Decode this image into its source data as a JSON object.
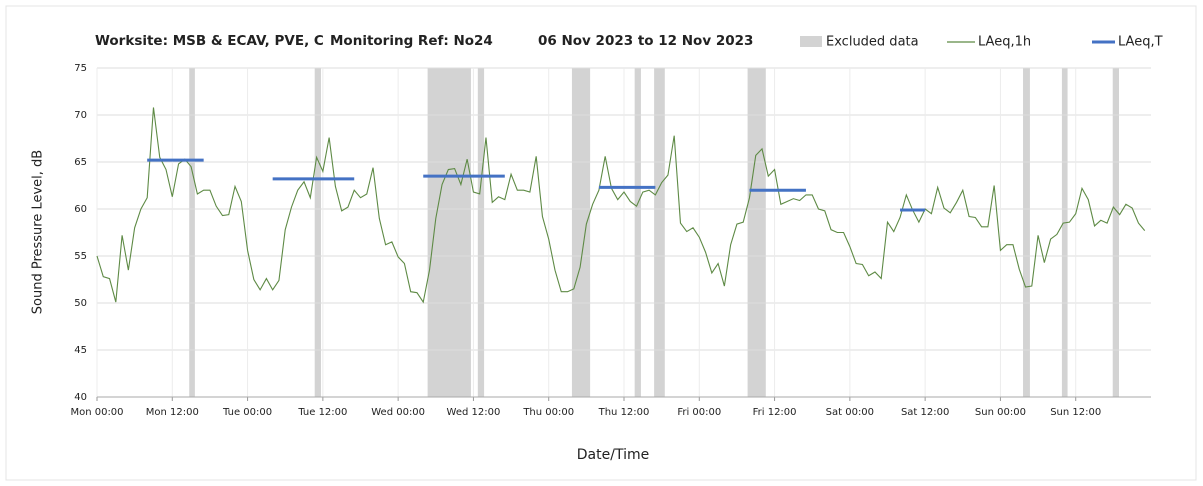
{
  "chart_data": {
    "type": "line",
    "title_parts": [
      "Worksite: MSB & ECAV, PVE, C",
      "Monitoring Ref: No24",
      "06 Nov 2023 to 12 Nov 2023"
    ],
    "x_label": "Date/Time",
    "y_label": "Sound Pressure Level, dB",
    "xlim": [
      0,
      168
    ],
    "xticks": [
      {
        "value": 0,
        "label": "Mon 00:00"
      },
      {
        "value": 12,
        "label": "Mon 12:00"
      },
      {
        "value": 24,
        "label": "Tue 00:00"
      },
      {
        "value": 36,
        "label": "Tue 12:00"
      },
      {
        "value": 48,
        "label": "Wed 00:00"
      },
      {
        "value": 60,
        "label": "Wed 12:00"
      },
      {
        "value": 72,
        "label": "Thu 00:00"
      },
      {
        "value": 84,
        "label": "Thu 12:00"
      },
      {
        "value": 96,
        "label": "Fri 00:00"
      },
      {
        "value": 108,
        "label": "Fri 12:00"
      },
      {
        "value": 120,
        "label": "Sat 00:00"
      },
      {
        "value": 132,
        "label": "Sat 12:00"
      },
      {
        "value": 144,
        "label": "Sun 00:00"
      },
      {
        "value": 156,
        "label": "Sun 12:00"
      }
    ],
    "ylim": [
      40,
      75
    ],
    "yticks": [
      40,
      45,
      50,
      55,
      60,
      65,
      70,
      75
    ],
    "grid": true,
    "x": [
      0,
      1,
      2,
      3,
      4,
      5,
      6,
      7,
      8,
      9,
      10,
      11,
      12,
      13,
      14,
      15,
      16,
      17,
      18,
      19,
      20,
      21,
      22,
      23,
      24,
      25,
      26,
      27,
      28,
      29,
      30,
      31,
      32,
      33,
      34,
      35,
      36,
      37,
      38,
      39,
      40,
      41,
      42,
      43,
      44,
      45,
      46,
      47,
      48,
      49,
      50,
      51,
      52,
      53,
      54,
      55,
      56,
      57,
      58,
      59,
      60,
      61,
      62,
      63,
      64,
      65,
      66,
      67,
      68,
      69,
      70,
      71,
      72,
      73,
      74,
      75,
      76,
      77,
      78,
      79,
      80,
      81,
      82,
      83,
      84,
      85,
      86,
      87,
      88,
      89,
      90,
      91,
      92,
      93,
      94,
      95,
      96,
      97,
      98,
      99,
      100,
      101,
      102,
      103,
      104,
      105,
      106,
      107,
      108,
      109,
      110,
      111,
      112,
      113,
      114,
      115,
      116,
      117,
      118,
      119,
      120,
      121,
      122,
      123,
      124,
      125,
      126,
      127,
      128,
      129,
      130,
      131,
      132,
      133,
      134,
      135,
      136,
      137,
      138,
      139,
      140,
      141,
      142,
      143,
      144,
      145,
      146,
      147,
      148,
      149,
      150,
      151,
      152,
      153,
      154,
      155,
      156,
      157,
      158,
      159,
      160,
      161,
      162,
      163,
      164,
      165,
      166,
      167
    ],
    "series": [
      {
        "name": "LAeq,1h",
        "color": "#5e8a45",
        "values": [
          55,
          52.8,
          52.6,
          50.1,
          57.2,
          53.5,
          58,
          60,
          61.2,
          70.8,
          65.5,
          64.2,
          61.3,
          64.8,
          65.3,
          64.5,
          61.6,
          62,
          62,
          60.3,
          59.3,
          59.4,
          62.4,
          60.8,
          55.6,
          52.5,
          51.4,
          52.6,
          51.4,
          52.4,
          57.8,
          60.2,
          62,
          62.9,
          61.2,
          65.5,
          64,
          67.6,
          62.4,
          59.8,
          60.2,
          62,
          61.2,
          61.6,
          64.4,
          59,
          56.2,
          56.5,
          54.9,
          54.2,
          51.2,
          51.1,
          50.1,
          53.5,
          59,
          62.6,
          64.2,
          64.3,
          62.6,
          65.3,
          61.8,
          61.6,
          67.6,
          60.7,
          61.3,
          61,
          63.7,
          62,
          62,
          61.8,
          65.6,
          59.2,
          56.8,
          53.5,
          51.2,
          51.2,
          51.5,
          53.8,
          58.4,
          60.5,
          62,
          65.6,
          62.2,
          61,
          61.8,
          60.8,
          60.3,
          61.8,
          62,
          61.5,
          62.8,
          63.6,
          67.8,
          58.5,
          57.6,
          58,
          57,
          55.4,
          53.2,
          54.2,
          51.8,
          56.2,
          58.4,
          58.6,
          61.2,
          65.7,
          66.4,
          63.5,
          64.2,
          60.5,
          60.8,
          61.1,
          60.9,
          61.5,
          61.5,
          60,
          59.8,
          57.8,
          57.5,
          57.5,
          56,
          54.2,
          54.1,
          52.9,
          53.3,
          52.6,
          58.6,
          57.6,
          59.1,
          61.5,
          59.9,
          58.6,
          60,
          59.5,
          62.3,
          60.1,
          59.6,
          60.7,
          62,
          59.2,
          59.1,
          58.1,
          58.1,
          62.5,
          55.6,
          56.2,
          56.2,
          53.6,
          51.7,
          51.8,
          57.2,
          54.3,
          56.8,
          57.3,
          58.5,
          58.6,
          59.5,
          62.2,
          61,
          58.2,
          58.8,
          58.5,
          60.2,
          59.4,
          60.5,
          60.1,
          58.5,
          57.7
        ]
      }
    ],
    "excluded": {
      "name": "Excluded data",
      "color": "#d3d3d3",
      "ranges": [
        [
          14.7,
          15.6
        ],
        [
          34.7,
          35.7
        ],
        [
          52.7,
          59.6
        ],
        [
          60.7,
          61.7
        ],
        [
          75.7,
          78.6
        ],
        [
          85.7,
          86.7
        ],
        [
          88.8,
          90.5
        ],
        [
          103.7,
          106.6
        ],
        [
          147.6,
          148.7
        ],
        [
          153.8,
          154.7
        ],
        [
          161.9,
          162.9
        ]
      ]
    },
    "laeq_t": {
      "name": "LAeq,T",
      "color": "#4472c4",
      "segments": [
        {
          "start": 8,
          "end": 17,
          "value": 65.2
        },
        {
          "start": 28,
          "end": 41,
          "value": 63.2
        },
        {
          "start": 52,
          "end": 65,
          "value": 63.5
        },
        {
          "start": 80,
          "end": 89,
          "value": 62.3
        },
        {
          "start": 104,
          "end": 113,
          "value": 62
        },
        {
          "start": 128,
          "end": 132,
          "value": 59.9
        }
      ]
    }
  }
}
